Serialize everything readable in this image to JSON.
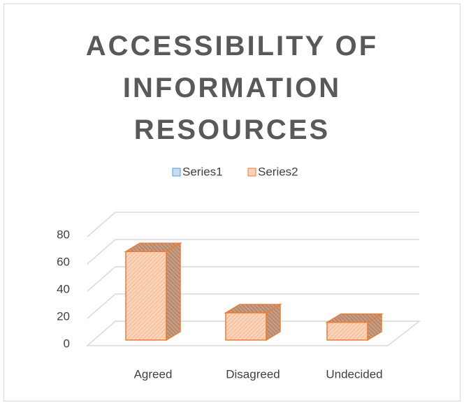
{
  "chart_data": {
    "type": "bar3d",
    "title": "ACCESSIBILITY OF INFORMATION RESOURCES",
    "categories": [
      "Agreed",
      "Disagreed",
      "Undecided"
    ],
    "series": [
      {
        "name": "Series1",
        "color": "#5b9bd5",
        "values": [
          null,
          null,
          null
        ]
      },
      {
        "name": "Series2",
        "color": "#ed7d31",
        "values": [
          65,
          20,
          13
        ]
      }
    ],
    "ylim": [
      0,
      80
    ],
    "yticks": [
      0,
      20,
      40,
      60,
      80
    ],
    "grid": true,
    "legend": "top"
  }
}
